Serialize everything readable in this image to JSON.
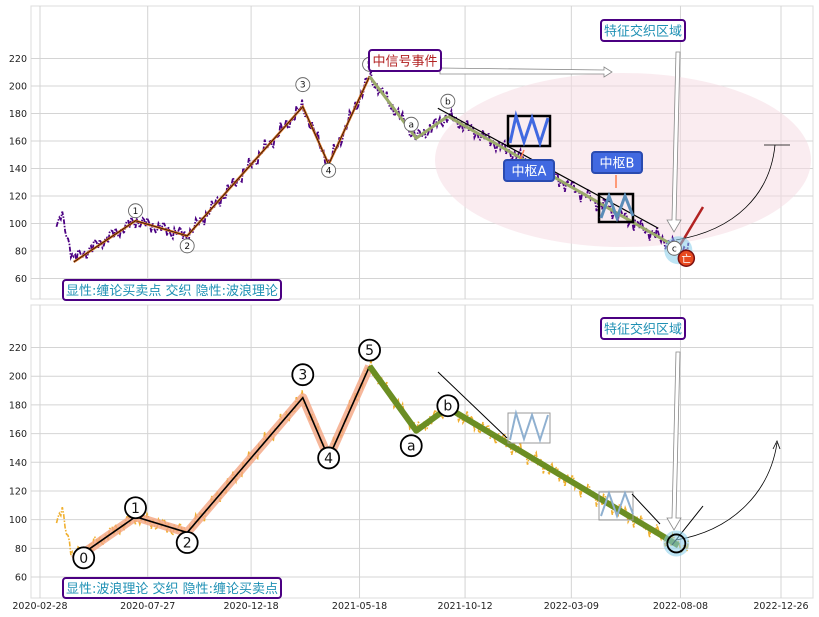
{
  "chart_data": [
    {
      "type": "line",
      "x_ticks": [
        "2020-02-28",
        "2020-07-27",
        "2020-12-18",
        "2021-05-18",
        "2021-10-12",
        "2022-03-09",
        "2022-08-08",
        "2022-12-26"
      ],
      "y_ticks": [
        60,
        80,
        100,
        120,
        140,
        160,
        180,
        200,
        220
      ],
      "ylim": [
        48,
        226
      ],
      "grid": true,
      "wave_labels": [
        "0",
        "1",
        "2",
        "3",
        "4",
        "5",
        "a",
        "b",
        "c"
      ],
      "wave_points": [
        {
          "label": "0",
          "x": "2020-04-15",
          "y": 72
        },
        {
          "label": "1",
          "x": "2020-07-10",
          "y": 102
        },
        {
          "label": "2",
          "x": "2020-09-20",
          "y": 91
        },
        {
          "label": "3",
          "x": "2021-02-28",
          "y": 185
        },
        {
          "label": "4",
          "x": "2021-04-05",
          "y": 143
        },
        {
          "label": "5",
          "x": "2021-06-01",
          "y": 207
        },
        {
          "label": "a",
          "x": "2021-08-05",
          "y": 162
        },
        {
          "label": "b",
          "x": "2021-09-18",
          "y": 178
        },
        {
          "label": "c",
          "x": "2022-08-05",
          "y": 82
        }
      ],
      "annotations": {
        "signal_event": "中信号事件",
        "feature_region": "特征交织区域",
        "pivot_a": "中枢A",
        "pivot_b": "中枢B",
        "end_marker": "亡",
        "note": "显性:缠论买卖点 交织 隐性:波浪理论"
      },
      "colors": {
        "price": "#4b0082",
        "up_stroke": "#d2691e",
        "wave_bc": "#9aaa6a",
        "pivot": "#4169e1",
        "region": "#f5dde4",
        "label_border": "#4b0082",
        "label_text": "#1e90b4",
        "signal_text": "#b22222"
      }
    },
    {
      "type": "line",
      "x_ticks": [
        "2020-02-28",
        "2020-07-27",
        "2020-12-18",
        "2021-05-18",
        "2021-10-12",
        "2022-03-09",
        "2022-08-08",
        "2022-12-26"
      ],
      "y_ticks": [
        60,
        80,
        100,
        120,
        140,
        160,
        180,
        200,
        220
      ],
      "ylim": [
        48,
        226
      ],
      "grid": true,
      "wave_labels": [
        "0",
        "1",
        "2",
        "3",
        "4",
        "5",
        "a",
        "b"
      ],
      "annotations": {
        "feature_region": "特征交织区域",
        "note": "显性:波浪理论 交织 隐性:缠论买卖点"
      },
      "colors": {
        "price": "#f0b030",
        "impulse_highlight": "#f4a582",
        "wave_line": "#000000",
        "correction": "#6b8e23",
        "end_circle": "#87ceeb",
        "label_border": "#4b0082",
        "label_text": "#1e90b4"
      }
    }
  ]
}
